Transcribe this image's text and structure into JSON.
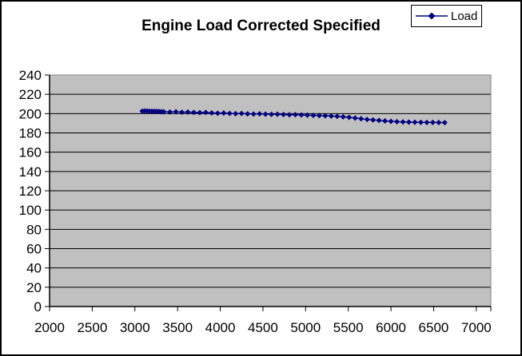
{
  "chart_data": {
    "type": "scatter",
    "title": "Engine Load Corrected Specified",
    "xlabel": "",
    "ylabel": "",
    "legend": {
      "position": "top-right",
      "label": "Load"
    },
    "x_axis": {
      "min": 2000,
      "max": 7170,
      "tick_interval": 500,
      "ticks": [
        2000,
        2500,
        3000,
        3500,
        4000,
        4500,
        5000,
        5500,
        6000,
        6500,
        7000
      ]
    },
    "y_axis": {
      "min": 0,
      "max": 240,
      "tick_interval": 20,
      "ticks": [
        0,
        20,
        40,
        60,
        80,
        100,
        120,
        140,
        160,
        180,
        200,
        220,
        240
      ]
    },
    "grid": "horizontal-major",
    "colors": {
      "plot_background": "#C0C0C0",
      "plot_border": "#808080",
      "gridline": "#000000",
      "axis": "#000000",
      "text": "#000000",
      "chart_border": "#000000",
      "legend_border": "#000000",
      "series": "#000080"
    },
    "series": [
      {
        "name": "Load",
        "color": "#000080",
        "marker": "diamond",
        "points": [
          [
            3086,
            202.6
          ],
          [
            3114,
            202.8
          ],
          [
            3142,
            202.7
          ],
          [
            3170,
            202.6
          ],
          [
            3198,
            202.5
          ],
          [
            3226,
            202.4
          ],
          [
            3254,
            202.3
          ],
          [
            3282,
            202.2
          ],
          [
            3310,
            202.0
          ],
          [
            3338,
            201.9
          ],
          [
            3410,
            201.6
          ],
          [
            3480,
            201.9
          ],
          [
            3550,
            201.4
          ],
          [
            3620,
            201.6
          ],
          [
            3690,
            201.2
          ],
          [
            3760,
            201.0
          ],
          [
            3830,
            201.2
          ],
          [
            3900,
            200.7
          ],
          [
            3970,
            200.4
          ],
          [
            4040,
            200.6
          ],
          [
            4110,
            200.2
          ],
          [
            4180,
            200.0
          ],
          [
            4250,
            200.2
          ],
          [
            4320,
            199.8
          ],
          [
            4390,
            199.6
          ],
          [
            4460,
            199.8
          ],
          [
            4530,
            199.4
          ],
          [
            4600,
            199.2
          ],
          [
            4670,
            199.3
          ],
          [
            4740,
            199.0
          ],
          [
            4810,
            198.8
          ],
          [
            4880,
            198.9
          ],
          [
            4950,
            198.6
          ],
          [
            5020,
            198.4
          ],
          [
            5090,
            198.2
          ],
          [
            5160,
            198.0
          ],
          [
            5230,
            197.8
          ],
          [
            5300,
            197.5
          ],
          [
            5370,
            197.2
          ],
          [
            5440,
            196.7
          ],
          [
            5510,
            196.1
          ],
          [
            5580,
            195.4
          ],
          [
            5650,
            194.7
          ],
          [
            5720,
            194.0
          ],
          [
            5790,
            193.4
          ],
          [
            5860,
            192.9
          ],
          [
            5930,
            192.4
          ],
          [
            6000,
            192.0
          ],
          [
            6070,
            191.6
          ],
          [
            6140,
            191.4
          ],
          [
            6210,
            191.2
          ],
          [
            6280,
            191.1
          ],
          [
            6350,
            191.0
          ],
          [
            6420,
            190.9
          ],
          [
            6490,
            190.9
          ],
          [
            6560,
            190.8
          ],
          [
            6630,
            190.7
          ]
        ]
      }
    ]
  }
}
